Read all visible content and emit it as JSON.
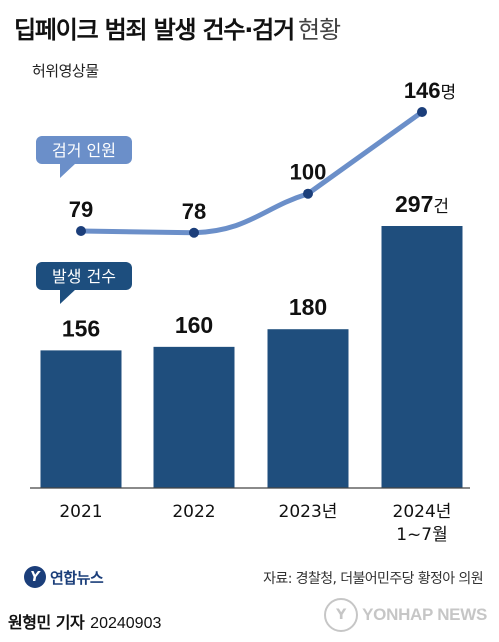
{
  "title": {
    "main": "딥페이크 범죄 발생 건수·검거",
    "sub": "현황"
  },
  "subtitle": "허위영상물",
  "chart_data": {
    "type": "bar",
    "categories": [
      "2021",
      "2022",
      "2023년",
      "2024년\n1~7월"
    ],
    "series": [
      {
        "name": "발생 건수",
        "type": "bar",
        "values": [
          156,
          160,
          180,
          297
        ],
        "labels": [
          "156",
          "160",
          "180",
          "297"
        ],
        "last_suffix": "건"
      },
      {
        "name": "검거 인원",
        "type": "line",
        "values": [
          79,
          78,
          100,
          146
        ],
        "labels": [
          "79",
          "78",
          "100",
          "146"
        ],
        "last_suffix": "명"
      }
    ],
    "colors": {
      "bar": "#1f4e7d",
      "line": "#6b8fc9",
      "line_point": "#1b3e7a",
      "bubble_bar": "#1d4e7e",
      "bubble_line": "#6b8fc9"
    }
  },
  "footer": {
    "logo_text": "연합뉴스",
    "logo_mark": "Y",
    "source": "자료: 경찰청, 더불어민주당 황정아 의원",
    "reporter": "원형민 기자",
    "date": "20240903",
    "watermark": "YONHAP NEWS"
  }
}
